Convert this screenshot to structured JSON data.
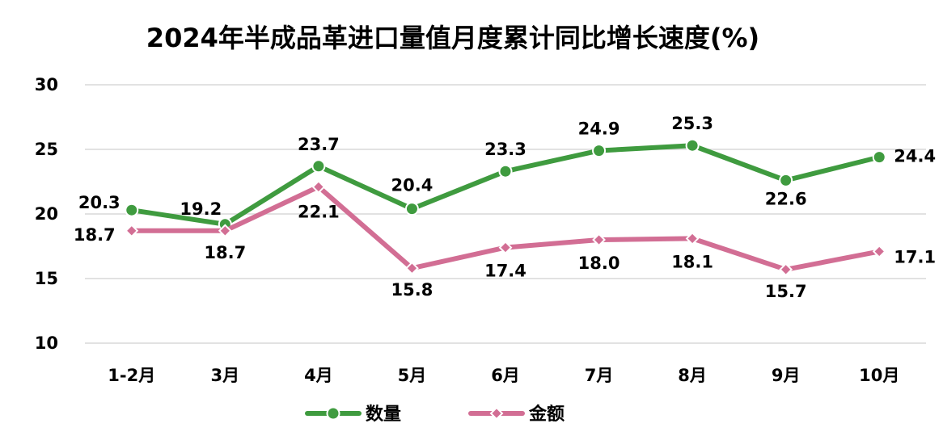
{
  "chart_data": {
    "type": "line",
    "title": "2024年半成品革进口量值月度累计同比增长速度(%)",
    "xlabel": "",
    "ylabel": "",
    "categories": [
      "1-2月",
      "3月",
      "4月",
      "5月",
      "6月",
      "7月",
      "8月",
      "9月",
      "10月"
    ],
    "ylim": [
      10,
      30
    ],
    "yticks": [
      "30",
      "25",
      "20",
      "15",
      "10"
    ],
    "grid": true,
    "legend_position": "bottom",
    "series": [
      {
        "name": "数量",
        "color": "#3f9b3f",
        "marker": "circle",
        "values": [
          20.3,
          19.2,
          23.7,
          20.4,
          23.3,
          24.9,
          25.3,
          22.6,
          24.4
        ],
        "labels": [
          "20.3",
          "19.2",
          "23.7",
          "20.4",
          "23.3",
          "24.9",
          "25.3",
          "22.6",
          "24.4"
        ]
      },
      {
        "name": "金额",
        "color": "#d26e94",
        "marker": "diamond",
        "values": [
          18.7,
          18.7,
          22.1,
          15.8,
          17.4,
          18.0,
          18.1,
          15.7,
          17.1
        ],
        "labels": [
          "18.7",
          "18.7",
          "22.1",
          "15.8",
          "17.4",
          "18.0",
          "18.1",
          "15.7",
          "17.1"
        ]
      }
    ]
  }
}
